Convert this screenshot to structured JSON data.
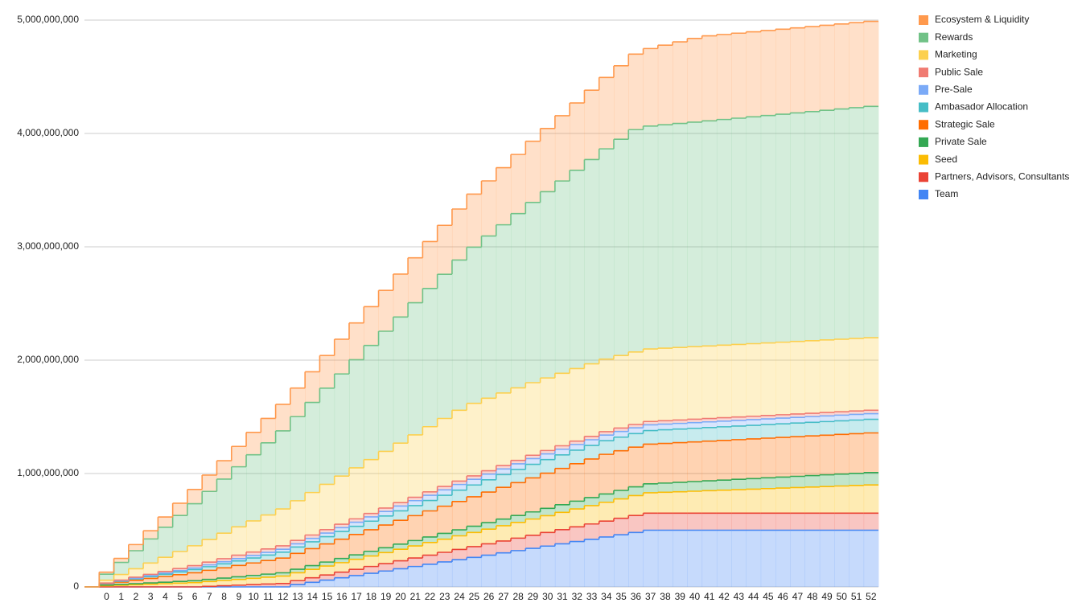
{
  "chart_data": {
    "type": "area",
    "stacked": true,
    "stepped": true,
    "grid": true,
    "legend": "right",
    "categories": [
      null,
      "0",
      "1",
      "2",
      "3",
      "4",
      "5",
      "6",
      "7",
      "8",
      "9",
      "10",
      "11",
      "12",
      "13",
      "14",
      "15",
      "16",
      "17",
      "18",
      "19",
      "20",
      "21",
      "22",
      "23",
      "24",
      "25",
      "26",
      "27",
      "28",
      "29",
      "30",
      "31",
      "32",
      "33",
      "34",
      "35",
      "36",
      "37",
      "38",
      "39",
      "40",
      "41",
      "42",
      "43",
      "44",
      "45",
      "46",
      "47",
      "48",
      "49",
      "50",
      "51",
      "52"
    ],
    "ylim": [
      0,
      5000000000.0
    ],
    "yticks": [
      0,
      {
        "value": 1000000000.0,
        "label": "1,000,000,000"
      },
      {
        "value": 2000000000.0,
        "label": "2,000,000,000"
      },
      {
        "value": 3000000000.0,
        "label": "3,000,000,000"
      },
      {
        "value": 4000000000.0,
        "label": "4,000,000,000"
      },
      {
        "value": 5000000000.0,
        "label": "5,000,000,000"
      }
    ],
    "series": [
      {
        "name": "Team",
        "color": "#4285f4",
        "values": [
          0,
          0,
          0,
          0,
          0,
          0,
          0,
          0,
          0,
          0,
          0,
          0,
          0,
          0,
          20000000.0,
          40000000.0,
          60000000.0,
          80000000.0,
          100000000.0,
          120000000.0,
          140000000.0,
          160000000.0,
          180000000.0,
          200000000.0,
          220000000.0,
          240000000.0,
          260000000.0,
          280000000.0,
          300000000.0,
          320000000.0,
          340000000.0,
          360000000.0,
          380000000.0,
          400000000.0,
          420000000.0,
          440000000.0,
          460000000.0,
          480000000.0,
          500000000.0,
          500000000.0,
          500000000.0,
          500000000.0,
          500000000.0,
          500000000.0,
          500000000.0,
          500000000.0,
          500000000.0,
          500000000.0,
          500000000.0,
          500000000.0,
          500000000.0,
          500000000.0,
          500000000.0,
          500000000.0
        ]
      },
      {
        "name": "Partners, Advisors, Consultants",
        "color": "#ea4335",
        "values": [
          0,
          0,
          0,
          0,
          0,
          0,
          0,
          0,
          5000000.0,
          10000000.0,
          15000000.0,
          20000000.0,
          25000000.0,
          30000000.0,
          35000000.0,
          40000000.0,
          45000000.0,
          50000000.0,
          55000000.0,
          60000000.0,
          65000000.0,
          70000000.0,
          75000000.0,
          80000000.0,
          85000000.0,
          90000000.0,
          95000000.0,
          100000000.0,
          105000000.0,
          110000000.0,
          115000000.0,
          120000000.0,
          125000000.0,
          130000000.0,
          135000000.0,
          140000000.0,
          145000000.0,
          150000000.0,
          150000000.0,
          150000000.0,
          150000000.0,
          150000000.0,
          150000000.0,
          150000000.0,
          150000000.0,
          150000000.0,
          150000000.0,
          150000000.0,
          150000000.0,
          150000000.0,
          150000000.0,
          150000000.0,
          150000000.0,
          150000000.0
        ]
      },
      {
        "name": "Seed",
        "color": "#fbbc04",
        "values": [
          0,
          10000000.0,
          14600000.0,
          19200000.0,
          23800000.0,
          28400000.0,
          33000000.0,
          37600000.0,
          42200000.0,
          46800000.0,
          51400000.0,
          56000000.0,
          60600000.0,
          65200000.0,
          69800000.0,
          74400000.0,
          79000000.0,
          83600000.0,
          88200000.0,
          92800000.0,
          97400000.0,
          102000000.0,
          106600000.0,
          111200000.0,
          115800000.0,
          120400000.0,
          125000000.0,
          129600000.0,
          134200000.0,
          138800000.0,
          143400000.0,
          148000000.0,
          152600000.0,
          157200000.0,
          161800000.0,
          166400000.0,
          171000000.0,
          175600000.0,
          180200000.0,
          184800000.0,
          189400000.0,
          194000000.0,
          198600000.0,
          203200000.0,
          207800000.0,
          212400000.0,
          217000000.0,
          221600000.0,
          226200000.0,
          230800000.0,
          235400000.0,
          240000000.0,
          244600000.0,
          249200000.0
        ]
      },
      {
        "name": "Private Sale",
        "color": "#34a853",
        "values": [
          0,
          5000000.0,
          7000000.0,
          9000000.0,
          11000000.0,
          13000000.0,
          15000000.0,
          17000000.0,
          19000000.0,
          21000000.0,
          23000000.0,
          25000000.0,
          27000000.0,
          29000000.0,
          31000000.0,
          33000000.0,
          35000000.0,
          37000000.0,
          39000000.0,
          41000000.0,
          43000000.0,
          45000000.0,
          47000000.0,
          49000000.0,
          51000000.0,
          53000000.0,
          55000000.0,
          57000000.0,
          59000000.0,
          61000000.0,
          63000000.0,
          65000000.0,
          67000000.0,
          69000000.0,
          71000000.0,
          73000000.0,
          75000000.0,
          77000000.0,
          79000000.0,
          81000000.0,
          83000000.0,
          85000000.0,
          87000000.0,
          89000000.0,
          91000000.0,
          93000000.0,
          95000000.0,
          97000000.0,
          99000000.0,
          101000000.0,
          103000000.0,
          105000000.0,
          107000000.0,
          109000000.0
        ]
      },
      {
        "name": "Strategic Sale",
        "color": "#ff6d01",
        "values": [
          0,
          10000000.0,
          20000000.0,
          30000000.0,
          40000000.0,
          50000000.0,
          60000000.0,
          70000000.0,
          80000000.0,
          90000000.0,
          100000000.0,
          110000000.0,
          120000000.0,
          130000000.0,
          140000000.0,
          150000000.0,
          160000000.0,
          170000000.0,
          180000000.0,
          190000000.0,
          200000000.0,
          210000000.0,
          220000000.0,
          230000000.0,
          240000000.0,
          250000000.0,
          260000000.0,
          270000000.0,
          280000000.0,
          290000000.0,
          300000000.0,
          310000000.0,
          320000000.0,
          330000000.0,
          340000000.0,
          350000000.0,
          350000000.0,
          350000000.0,
          350000000.0,
          350000000.0,
          350000000.0,
          350000000.0,
          350000000.0,
          350000000.0,
          350000000.0,
          350000000.0,
          350000000.0,
          350000000.0,
          350000000.0,
          350000000.0,
          350000000.0,
          350000000.0,
          350000000.0,
          350000000.0
        ]
      },
      {
        "name": "Ambasador Allocation",
        "color": "#46bdc6",
        "values": [
          0,
          4000000.0,
          8000000.0,
          12000000.0,
          16000000.0,
          20000000.0,
          24000000.0,
          28000000.0,
          32000000.0,
          36000000.0,
          40000000.0,
          44000000.0,
          48000000.0,
          52000000.0,
          56000000.0,
          60000000.0,
          64000000.0,
          68000000.0,
          72000000.0,
          76000000.0,
          80000000.0,
          84000000.0,
          88000000.0,
          92000000.0,
          96000000.0,
          100000000.0,
          104000000.0,
          108000000.0,
          112000000.0,
          116000000.0,
          120000000.0,
          120000000.0,
          120000000.0,
          120000000.0,
          120000000.0,
          120000000.0,
          120000000.0,
          120000000.0,
          120000000.0,
          120000000.0,
          120000000.0,
          120000000.0,
          120000000.0,
          120000000.0,
          120000000.0,
          120000000.0,
          120000000.0,
          120000000.0,
          120000000.0,
          120000000.0,
          120000000.0,
          120000000.0,
          120000000.0,
          120000000.0
        ]
      },
      {
        "name": "Pre-Sale",
        "color": "#7baaf7",
        "values": [
          0,
          2000000.0,
          4000000.0,
          6000000.0,
          8000000.0,
          10000000.0,
          12000000.0,
          14000000.0,
          16000000.0,
          18000000.0,
          20000000.0,
          22000000.0,
          24000000.0,
          26000000.0,
          28000000.0,
          30000000.0,
          32000000.0,
          34000000.0,
          36000000.0,
          38000000.0,
          40000000.0,
          42000000.0,
          44000000.0,
          46000000.0,
          48000000.0,
          50000000.0,
          50000000.0,
          50000000.0,
          50000000.0,
          50000000.0,
          50000000.0,
          50000000.0,
          50000000.0,
          50000000.0,
          50000000.0,
          50000000.0,
          50000000.0,
          50000000.0,
          50000000.0,
          50000000.0,
          50000000.0,
          50000000.0,
          50000000.0,
          50000000.0,
          50000000.0,
          50000000.0,
          50000000.0,
          50000000.0,
          50000000.0,
          50000000.0,
          50000000.0,
          50000000.0,
          50000000.0,
          50000000.0
        ]
      },
      {
        "name": "Public Sale",
        "color": "#f07b72",
        "values": [
          0,
          3000000.0,
          6000000.0,
          9000000.0,
          12000000.0,
          15000000.0,
          18000000.0,
          21000000.0,
          24000000.0,
          27000000.0,
          30000000.0,
          30000000.0,
          30000000.0,
          30000000.0,
          30000000.0,
          30000000.0,
          30000000.0,
          30000000.0,
          30000000.0,
          30000000.0,
          30000000.0,
          30000000.0,
          30000000.0,
          30000000.0,
          30000000.0,
          30000000.0,
          30000000.0,
          30000000.0,
          30000000.0,
          30000000.0,
          30000000.0,
          30000000.0,
          30000000.0,
          30000000.0,
          30000000.0,
          30000000.0,
          30000000.0,
          30000000.0,
          30000000.0,
          30000000.0,
          30000000.0,
          30000000.0,
          30000000.0,
          30000000.0,
          30000000.0,
          30000000.0,
          30000000.0,
          30000000.0,
          30000000.0,
          30000000.0,
          30000000.0,
          30000000.0,
          30000000.0,
          30000000.0
        ]
      },
      {
        "name": "Marketing",
        "color": "#fcd04f",
        "values": [
          0,
          25000000.0,
          50000000.0,
          75000000.0,
          100000000.0,
          125000000.0,
          150000000.0,
          175000000.0,
          200000000.0,
          225000000.0,
          250000000.0,
          275000000.0,
          300000000.0,
          325000000.0,
          350000000.0,
          375000000.0,
          400000000.0,
          425000000.0,
          450000000.0,
          475000000.0,
          500000000.0,
          525000000.0,
          550000000.0,
          575000000.0,
          600000000.0,
          625000000.0,
          640000000.0,
          640000000.0,
          640000000.0,
          640000000.0,
          640000000.0,
          640000000.0,
          640000000.0,
          640000000.0,
          640000000.0,
          640000000.0,
          640000000.0,
          640000000.0,
          640000000.0,
          640000000.0,
          640000000.0,
          640000000.0,
          640000000.0,
          640000000.0,
          640000000.0,
          640000000.0,
          640000000.0,
          640000000.0,
          640000000.0,
          640000000.0,
          640000000.0,
          640000000.0,
          640000000.0,
          640000000.0
        ]
      },
      {
        "name": "Rewards",
        "color": "#71c287",
        "values": [
          0,
          53000000.0,
          106000000.0,
          159000000.0,
          212000000.0,
          265000000.0,
          318000000.0,
          371000000.0,
          424000000.0,
          477000000.0,
          530000000.0,
          583000000.0,
          636000000.0,
          689000000.0,
          742000000.0,
          795000000.0,
          848000000.0,
          901000000.0,
          954000000.0,
          1007000000.0,
          1060000000.0,
          1113000000.0,
          1166000000.0,
          1219000000.0,
          1272000000.0,
          1325000000.0,
          1378000000.0,
          1431000000.0,
          1484000000.0,
          1537000000.0,
          1590000000.0,
          1643000000.0,
          1696000000.0,
          1749000000.0,
          1802000000.0,
          1855000000.0,
          1908000000.0,
          1961000000.0,
          1966000000.0,
          1971000000.0,
          1976000000.0,
          1981000000.0,
          1986000000.0,
          1991000000.0,
          1996000000.0,
          2001000000.0,
          2006000000.0,
          2011000000.0,
          2016000000.0,
          2021000000.0,
          2026000000.0,
          2031000000.0,
          2036000000.0,
          2041000000.0
        ]
      },
      {
        "name": "Ecosystem & Liquidity",
        "color": "#ff994d",
        "values": [
          0,
          18000000.0,
          36000000.0,
          54000000.0,
          72000000.0,
          90000000.0,
          108000000.0,
          126000000.0,
          144000000.0,
          162000000.0,
          180000000.0,
          198000000.0,
          216000000.0,
          234000000.0,
          252000000.0,
          270000000.0,
          288000000.0,
          306000000.0,
          324000000.0,
          342000000.0,
          360000000.0,
          378000000.0,
          396000000.0,
          414000000.0,
          432000000.0,
          450000000.0,
          468000000.0,
          486000000.0,
          504000000.0,
          522000000.0,
          540000000.0,
          558000000.0,
          576000000.0,
          594000000.0,
          612000000.0,
          630000000.0,
          648000000.0,
          666000000.0,
          684000000.0,
          702000000.0,
          720000000.0,
          738000000.0,
          750000000.0,
          750000000.0,
          750000000.0,
          750000000.0,
          750000000.0,
          750000000.0,
          750000000.0,
          750000000.0,
          750000000.0,
          750000000.0,
          750000000.0,
          750000000.0
        ]
      }
    ]
  }
}
